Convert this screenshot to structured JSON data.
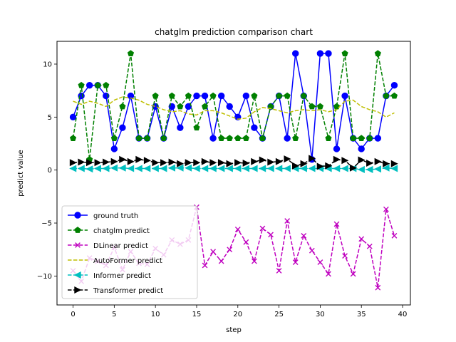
{
  "chart_data": {
    "type": "line",
    "title": "chatglm prediction comparison chart",
    "xlabel": "step",
    "ylabel": "predict value",
    "xlim": [
      -1.95,
      40.95
    ],
    "ylim": [
      -12.73,
      12.15
    ],
    "xticks": [
      0,
      5,
      10,
      15,
      20,
      25,
      30,
      35,
      40
    ],
    "yticks": [
      -10,
      -5,
      0,
      5,
      10
    ],
    "grid": false,
    "legend_position": "lower-left",
    "x": [
      0,
      1,
      2,
      3,
      4,
      5,
      6,
      7,
      8,
      9,
      10,
      11,
      12,
      13,
      14,
      15,
      16,
      17,
      18,
      19,
      20,
      21,
      22,
      23,
      24,
      25,
      26,
      27,
      28,
      29,
      30,
      31,
      32,
      33,
      34,
      35,
      36,
      37,
      38,
      39
    ],
    "series": [
      {
        "name": "ground truth",
        "color": "#0000ff",
        "line": "solid",
        "marker": "circle",
        "values": [
          5,
          7,
          8,
          8,
          7,
          2,
          4,
          7,
          3,
          3,
          6,
          3,
          6,
          4,
          6,
          7,
          7,
          3,
          7,
          6,
          5,
          7,
          4,
          3,
          6,
          7,
          3,
          11,
          7,
          1,
          11,
          11,
          2,
          7,
          3,
          2,
          3,
          3,
          7,
          8
        ]
      },
      {
        "name": "chatglm predict",
        "color": "#008000",
        "line": "dashed",
        "marker": "pentagon",
        "values": [
          3,
          8,
          1,
          8,
          8,
          3,
          6,
          11,
          3,
          3,
          7,
          3,
          7,
          6,
          7,
          4,
          6,
          7,
          3,
          3,
          3,
          3,
          7,
          3,
          6,
          7,
          7,
          3,
          7,
          6,
          6,
          3,
          6,
          11,
          3,
          3,
          3,
          11,
          7,
          7
        ]
      },
      {
        "name": "DLinear predict",
        "color": "#bf00bf",
        "line": "dashed",
        "marker": "x",
        "values": [
          -9.5,
          -10.5,
          -8.3,
          -8.6,
          -9.0,
          -7.3,
          -9.4,
          -7.7,
          -8.8,
          -8.9,
          -7.4,
          -8.0,
          -6.6,
          -7.0,
          -6.6,
          -3.5,
          -9.0,
          -7.7,
          -8.6,
          -7.5,
          -5.6,
          -6.8,
          -8.6,
          -5.5,
          -6.1,
          -9.5,
          -4.8,
          -8.7,
          -6.2,
          -7.6,
          -8.7,
          -9.8,
          -5.1,
          -8.1,
          -9.8,
          -6.5,
          -7.2,
          -11.1,
          -3.7,
          -6.2
        ]
      },
      {
        "name": "AutoFormer predict",
        "color": "#bfbf00",
        "line": "dashed",
        "marker": "none",
        "values": [
          6.5,
          6.2,
          6.5,
          6.3,
          6.0,
          6.6,
          6.9,
          6.8,
          6.6,
          6.2,
          6.0,
          5.7,
          5.5,
          5.6,
          5.3,
          5.2,
          5.6,
          5.6,
          5.4,
          5.1,
          4.8,
          4.9,
          5.5,
          5.9,
          5.8,
          5.6,
          5.4,
          5.6,
          5.7,
          5.6,
          5.7,
          5.5,
          5.7,
          6.5,
          6.6,
          6.0,
          5.7,
          5.5,
          5.0,
          5.4
        ]
      },
      {
        "name": "Informer predict",
        "color": "#00bfbf",
        "line": "dashed",
        "marker": "triangle-left",
        "values": [
          0.15,
          0.15,
          0.1,
          0.15,
          0.15,
          0.2,
          0.2,
          0.15,
          0.15,
          0.15,
          0.15,
          0.15,
          0.2,
          0.2,
          0.2,
          0.15,
          0.15,
          0.15,
          0.15,
          0.15,
          0.15,
          0.15,
          0.15,
          0.15,
          0.15,
          0.15,
          0.15,
          0.15,
          0.15,
          0.15,
          0.15,
          0.15,
          0.15,
          0.15,
          0.15,
          0.05,
          0.05,
          0.1,
          0.2,
          0.15
        ]
      },
      {
        "name": "Transformer predict",
        "color": "#000000",
        "line": "dashed",
        "marker": "triangle-right",
        "values": [
          0.7,
          0.75,
          0.7,
          0.7,
          0.75,
          0.8,
          1.0,
          0.8,
          1.0,
          0.9,
          0.7,
          0.7,
          0.75,
          0.6,
          0.7,
          0.7,
          0.8,
          0.7,
          0.7,
          0.6,
          0.7,
          0.65,
          0.8,
          0.95,
          0.75,
          0.8,
          1.05,
          0.4,
          0.6,
          1.1,
          0.35,
          0.4,
          1.0,
          0.9,
          0.2,
          0.95,
          0.65,
          0.8,
          0.6,
          0.6
        ]
      }
    ]
  }
}
